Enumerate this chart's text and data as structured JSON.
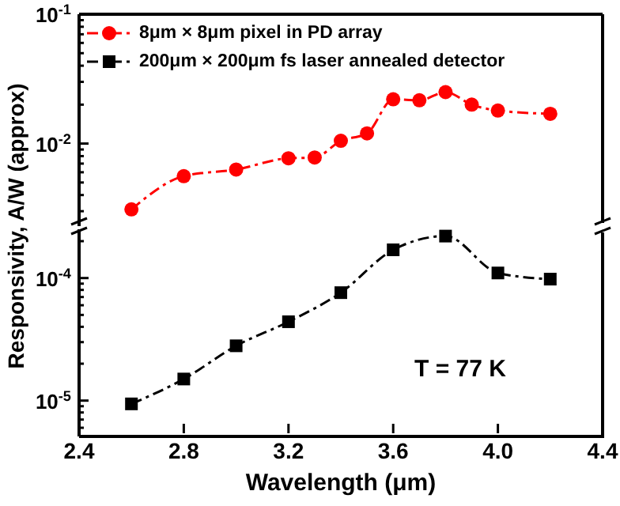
{
  "chart_data": [
    {
      "type": "line",
      "ylabel": "Responsivity, A/W (approx)",
      "x": [
        2.6,
        2.8,
        3.0,
        3.2,
        3.3,
        3.4,
        3.5,
        3.6,
        3.7,
        3.8,
        3.9,
        4.0,
        4.2
      ],
      "series": [
        {
          "name": "8μm × 8μm pixel in PD array",
          "color": "#ff0000",
          "values": [
            0.0031,
            0.0056,
            0.0063,
            0.0077,
            0.0078,
            0.0105,
            0.012,
            0.022,
            0.0216,
            0.025,
            0.02,
            0.018,
            0.017
          ]
        }
      ],
      "xlim": [
        2.4,
        4.4
      ],
      "ylim": [
        0.0023,
        0.1
      ],
      "log": "y",
      "yticks": [
        {
          "value": 0.003,
          "label": null
        },
        {
          "value": 0.004,
          "label": null
        },
        {
          "value": 0.005,
          "label": null
        },
        {
          "value": 0.006,
          "label": null
        },
        {
          "value": 0.007,
          "label": null
        },
        {
          "value": 0.008,
          "label": null
        },
        {
          "value": 0.009,
          "label": null
        },
        {
          "value": 0.01,
          "label": "10$^{-2}$"
        },
        {
          "value": 0.02,
          "label": null
        },
        {
          "value": 0.03,
          "label": null
        },
        {
          "value": 0.04,
          "label": null
        },
        {
          "value": 0.05,
          "label": null
        },
        {
          "value": 0.06,
          "label": null
        },
        {
          "value": 0.07,
          "label": null
        },
        {
          "value": 0.08,
          "label": null
        },
        {
          "value": 0.09,
          "label": null
        },
        {
          "value": 0.1,
          "label": "10$^{-1}$"
        }
      ],
      "tick_labels": "y",
      "marker": "circle",
      "line_style": "dashed",
      "legend": "top left"
    },
    {
      "type": "line",
      "xlabel": "Wavelength (μm)",
      "annotations": [
        "T = 77 K"
      ],
      "x": [
        2.6,
        2.8,
        3.0,
        3.2,
        3.4,
        3.6,
        3.8,
        4.0,
        4.2
      ],
      "series": [
        {
          "name": "200μm × 200μm fs laser annealed detector",
          "color": "#000000",
          "values": [
            9.4e-06,
            1.5e-05,
            2.8e-05,
            4.4e-05,
            7.6e-05,
            0.00017,
            0.00022,
            0.00011,
            9.8e-05
          ]
        }
      ],
      "xlim": [
        2.4,
        4.4
      ],
      "xticks": [
        2.4,
        2.8,
        3.2,
        3.6,
        {
          "value": 4,
          "label": "4.0"
        },
        4.4
      ],
      "ylim": [
        5.1e-06,
        0.00025
      ],
      "log": "y",
      "yticks": [
        {
          "value": 6e-06,
          "label": null
        },
        {
          "value": 7e-06,
          "label": null
        },
        {
          "value": 8e-06,
          "label": null
        },
        {
          "value": 9e-06,
          "label": null
        },
        {
          "value": 1e-05,
          "label": "10$^{-5}$"
        },
        {
          "value": 2e-05,
          "label": null
        },
        {
          "value": 3e-05,
          "label": null
        },
        {
          "value": 4e-05,
          "label": null
        },
        {
          "value": 5e-05,
          "label": null
        },
        {
          "value": 6e-05,
          "label": null
        },
        {
          "value": 7e-05,
          "label": null
        },
        {
          "value": 8e-05,
          "label": null
        },
        {
          "value": 9e-05,
          "label": null
        },
        {
          "value": 0.0001,
          "label": "10$^{-4}$"
        },
        {
          "value": 0.0002,
          "label": null
        }
      ],
      "marker": "square",
      "line_style": "dashed",
      "legend": "top left"
    }
  ]
}
